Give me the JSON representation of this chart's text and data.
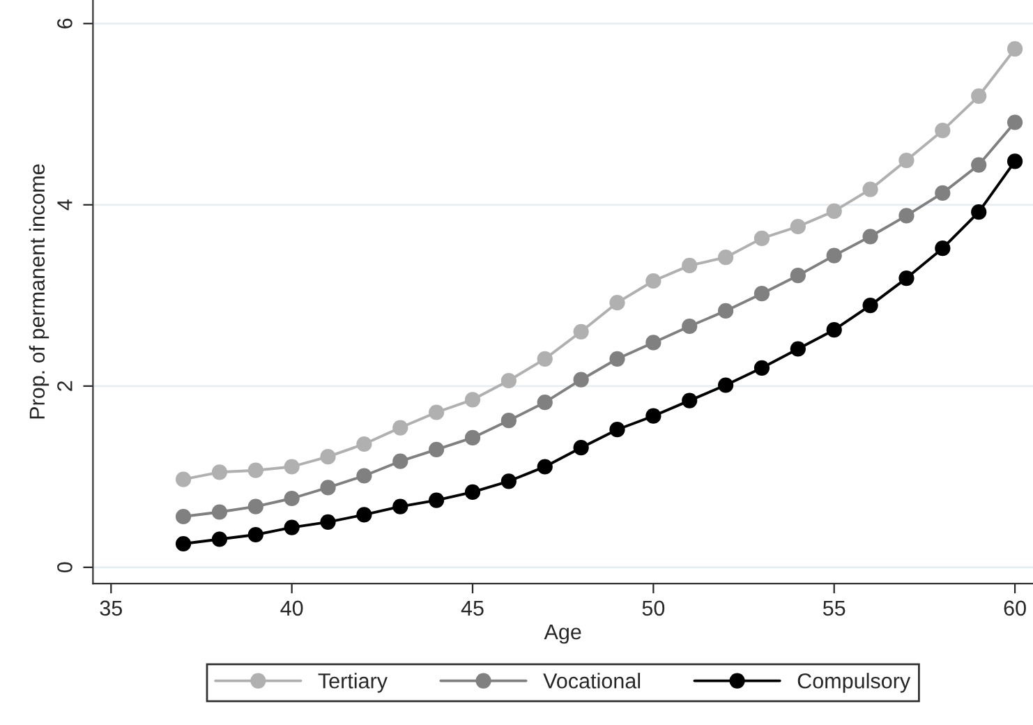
{
  "chart_data": {
    "type": "line",
    "xlabel": "Age",
    "ylabel": "Prop. of permanent income",
    "x": [
      37,
      38,
      39,
      40,
      41,
      42,
      43,
      44,
      45,
      46,
      47,
      48,
      49,
      50,
      51,
      52,
      53,
      54,
      55,
      56,
      57,
      58,
      59,
      60
    ],
    "series": [
      {
        "name": "Tertiary",
        "color": "#b0b0b0",
        "values": [
          0.97,
          1.05,
          1.07,
          1.11,
          1.22,
          1.36,
          1.54,
          1.71,
          1.85,
          2.06,
          2.3,
          2.6,
          2.92,
          3.16,
          3.33,
          3.42,
          3.63,
          3.76,
          3.93,
          4.17,
          4.49,
          4.82,
          5.2,
          5.72
        ]
      },
      {
        "name": "Vocational",
        "color": "#808080",
        "values": [
          0.56,
          0.61,
          0.67,
          0.76,
          0.88,
          1.01,
          1.17,
          1.3,
          1.43,
          1.62,
          1.82,
          2.07,
          2.3,
          2.48,
          2.66,
          2.83,
          3.02,
          3.22,
          3.44,
          3.65,
          3.88,
          4.13,
          4.44,
          4.91
        ]
      },
      {
        "name": "Compulsory",
        "color": "#000000",
        "values": [
          0.26,
          0.31,
          0.36,
          0.44,
          0.5,
          0.58,
          0.67,
          0.74,
          0.83,
          0.95,
          1.11,
          1.32,
          1.52,
          1.67,
          1.84,
          2.01,
          2.2,
          2.41,
          2.62,
          2.89,
          3.19,
          3.52,
          3.92,
          4.48
        ]
      }
    ],
    "xlim": [
      34.5,
      60.5
    ],
    "ylim": [
      -0.18,
      6.26
    ],
    "xticks": [
      35,
      40,
      45,
      50,
      55,
      60
    ],
    "yticks": [
      0,
      2,
      4,
      6
    ],
    "grid": "y",
    "legend": "bottom",
    "marker": "circle",
    "line_style": "solid"
  }
}
